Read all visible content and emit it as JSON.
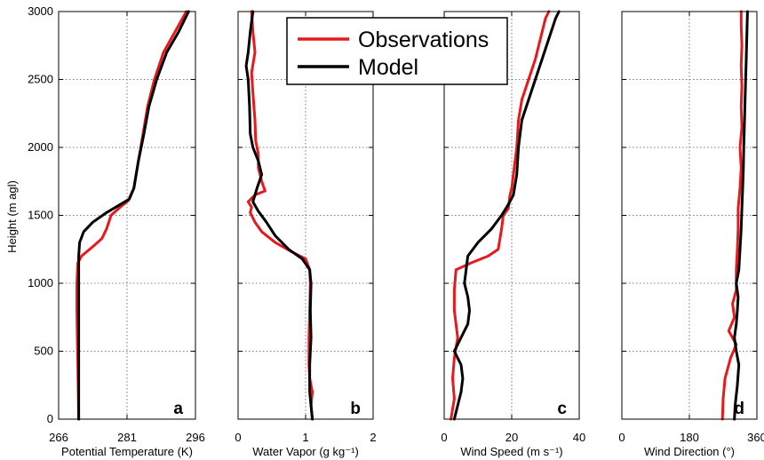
{
  "figure": {
    "ylabel": "Height (m agl)",
    "legend": {
      "placement": "top-center",
      "entries": [
        {
          "label": "Observations",
          "color": "#e8191c"
        },
        {
          "label": "Model",
          "color": "#000000"
        }
      ]
    }
  },
  "chart_data": [
    {
      "type": "line",
      "panel_label": "a",
      "xlabel": "Potential Temperature (K)",
      "ylabel": "Height (m agl)",
      "xlim": [
        266,
        296
      ],
      "ylim": [
        0,
        3000
      ],
      "xticks": [
        266,
        281,
        296
      ],
      "yticks": [
        0,
        500,
        1000,
        1500,
        2000,
        2500,
        3000
      ],
      "grid": true,
      "series": [
        {
          "name": "Observations",
          "color": "#e8191c",
          "points": [
            [
              270.4,
              0
            ],
            [
              270.3,
              200
            ],
            [
              270.2,
              400
            ],
            [
              270.1,
              600
            ],
            [
              270.0,
              800
            ],
            [
              270.0,
              1000
            ],
            [
              270.2,
              1150
            ],
            [
              271.0,
              1200
            ],
            [
              273.5,
              1270
            ],
            [
              275.5,
              1330
            ],
            [
              276.5,
              1400
            ],
            [
              277.5,
              1500
            ],
            [
              279.5,
              1560
            ],
            [
              281.3,
              1610
            ],
            [
              282.5,
              1700
            ],
            [
              283.5,
              1900
            ],
            [
              284.5,
              2100
            ],
            [
              285.5,
              2300
            ],
            [
              287.0,
              2500
            ],
            [
              289.0,
              2700
            ],
            [
              291.5,
              2850
            ],
            [
              294.0,
              3000
            ]
          ]
        },
        {
          "name": "Model",
          "color": "#000000",
          "points": [
            [
              270.4,
              0
            ],
            [
              270.4,
              300
            ],
            [
              270.4,
              600
            ],
            [
              270.4,
              900
            ],
            [
              270.4,
              1200
            ],
            [
              270.6,
              1300
            ],
            [
              271.5,
              1380
            ],
            [
              273.5,
              1450
            ],
            [
              276.5,
              1520
            ],
            [
              279.5,
              1580
            ],
            [
              281.5,
              1620
            ],
            [
              282.5,
              1700
            ],
            [
              283.5,
              1900
            ],
            [
              284.7,
              2100
            ],
            [
              285.8,
              2300
            ],
            [
              287.5,
              2500
            ],
            [
              289.7,
              2700
            ],
            [
              292.3,
              2850
            ],
            [
              294.5,
              3000
            ]
          ]
        }
      ]
    },
    {
      "type": "line",
      "panel_label": "b",
      "xlabel": "Water Vapor (g kg⁻¹)",
      "ylabel": "Height (m agl)",
      "xlim": [
        0,
        2
      ],
      "ylim": [
        0,
        3000
      ],
      "xticks": [
        0,
        1,
        2
      ],
      "yticks": [
        0,
        500,
        1000,
        1500,
        2000,
        2500,
        3000
      ],
      "grid": true,
      "series": [
        {
          "name": "Observations",
          "color": "#e8191c",
          "points": [
            [
              1.1,
              0
            ],
            [
              1.08,
              100
            ],
            [
              1.1,
              200
            ],
            [
              1.06,
              300
            ],
            [
              1.05,
              400
            ],
            [
              1.05,
              600
            ],
            [
              1.06,
              800
            ],
            [
              1.07,
              1000
            ],
            [
              1.06,
              1100
            ],
            [
              1.0,
              1180
            ],
            [
              0.8,
              1230
            ],
            [
              0.55,
              1300
            ],
            [
              0.35,
              1380
            ],
            [
              0.25,
              1450
            ],
            [
              0.18,
              1520
            ],
            [
              0.2,
              1560
            ],
            [
              0.15,
              1600
            ],
            [
              0.25,
              1650
            ],
            [
              0.4,
              1680
            ],
            [
              0.35,
              1750
            ],
            [
              0.3,
              1850
            ],
            [
              0.3,
              1950
            ],
            [
              0.26,
              2050
            ],
            [
              0.25,
              2200
            ],
            [
              0.22,
              2400
            ],
            [
              0.2,
              2550
            ],
            [
              0.25,
              2700
            ],
            [
              0.22,
              2850
            ],
            [
              0.2,
              3000
            ]
          ]
        },
        {
          "name": "Model",
          "color": "#000000",
          "points": [
            [
              1.1,
              0
            ],
            [
              1.06,
              200
            ],
            [
              1.06,
              400
            ],
            [
              1.08,
              600
            ],
            [
              1.07,
              800
            ],
            [
              1.08,
              1000
            ],
            [
              1.06,
              1100
            ],
            [
              0.95,
              1180
            ],
            [
              0.75,
              1250
            ],
            [
              0.55,
              1350
            ],
            [
              0.42,
              1450
            ],
            [
              0.3,
              1530
            ],
            [
              0.22,
              1600
            ],
            [
              0.28,
              1700
            ],
            [
              0.35,
              1800
            ],
            [
              0.3,
              1900
            ],
            [
              0.22,
              2000
            ],
            [
              0.18,
              2100
            ],
            [
              0.17,
              2300
            ],
            [
              0.15,
              2500
            ],
            [
              0.12,
              2600
            ],
            [
              0.15,
              2700
            ],
            [
              0.18,
              2850
            ],
            [
              0.22,
              3000
            ]
          ]
        }
      ]
    },
    {
      "type": "line",
      "panel_label": "c",
      "xlabel": "Wind Speed (m s⁻¹)",
      "ylabel": "Height (m agl)",
      "xlim": [
        0,
        40
      ],
      "ylim": [
        0,
        3000
      ],
      "xticks": [
        0,
        20,
        40
      ],
      "yticks": [
        0,
        500,
        1000,
        1500,
        2000,
        2500,
        3000
      ],
      "grid": true,
      "series": [
        {
          "name": "Observations",
          "color": "#e8191c",
          "points": [
            [
              2,
              0
            ],
            [
              3,
              150
            ],
            [
              2.5,
              300
            ],
            [
              3,
              450
            ],
            [
              4,
              600
            ],
            [
              3,
              800
            ],
            [
              3,
              950
            ],
            [
              3.5,
              1100
            ],
            [
              8,
              1150
            ],
            [
              13,
              1200
            ],
            [
              16,
              1250
            ],
            [
              17,
              1400
            ],
            [
              17.5,
              1500
            ],
            [
              19,
              1550
            ],
            [
              19.5,
              1650
            ],
            [
              20,
              1700
            ],
            [
              20.5,
              1800
            ],
            [
              21.5,
              2000
            ],
            [
              22,
              2200
            ],
            [
              23,
              2350
            ],
            [
              25,
              2500
            ],
            [
              27,
              2650
            ],
            [
              28,
              2750
            ],
            [
              29,
              2850
            ],
            [
              30,
              2950
            ],
            [
              31,
              3000
            ]
          ]
        },
        {
          "name": "Model",
          "color": "#000000",
          "points": [
            [
              3,
              0
            ],
            [
              4,
              100
            ],
            [
              5,
              200
            ],
            [
              5.5,
              300
            ],
            [
              5,
              400
            ],
            [
              3,
              500
            ],
            [
              5,
              600
            ],
            [
              7,
              700
            ],
            [
              7.5,
              800
            ],
            [
              7,
              900
            ],
            [
              6,
              1000
            ],
            [
              7,
              1200
            ],
            [
              10,
              1300
            ],
            [
              14,
              1400
            ],
            [
              17,
              1500
            ],
            [
              19,
              1580
            ],
            [
              20.5,
              1650
            ],
            [
              21.5,
              1800
            ],
            [
              22,
              2000
            ],
            [
              23,
              2200
            ],
            [
              25,
              2350
            ],
            [
              27,
              2500
            ],
            [
              29,
              2650
            ],
            [
              31,
              2800
            ],
            [
              33,
              2950
            ],
            [
              34,
              3000
            ]
          ]
        }
      ]
    },
    {
      "type": "line",
      "panel_label": "d",
      "xlabel": "Wind Direction (°)",
      "ylabel": "Height (m agl)",
      "xlim": [
        0,
        360
      ],
      "ylim": [
        0,
        3000
      ],
      "xticks": [
        0,
        180,
        360
      ],
      "yticks": [
        0,
        500,
        1000,
        1500,
        2000,
        2500,
        3000
      ],
      "grid": true,
      "series": [
        {
          "name": "Observations",
          "color": "#e8191c",
          "points": [
            [
              268,
              0
            ],
            [
              270,
              150
            ],
            [
              275,
              300
            ],
            [
              290,
              450
            ],
            [
              305,
              550
            ],
            [
              285,
              650
            ],
            [
              300,
              750
            ],
            [
              295,
              850
            ],
            [
              305,
              950
            ],
            [
              305,
              1100
            ],
            [
              308,
              1250
            ],
            [
              310,
              1400
            ],
            [
              310,
              1550
            ],
            [
              315,
              1700
            ],
            [
              318,
              1850
            ],
            [
              315,
              2000
            ],
            [
              320,
              2150
            ],
            [
              318,
              2300
            ],
            [
              320,
              2450
            ],
            [
              318,
              2600
            ],
            [
              320,
              2750
            ],
            [
              318,
              2900
            ],
            [
              318,
              3000
            ]
          ]
        },
        {
          "name": "Model",
          "color": "#000000",
          "points": [
            [
              300,
              0
            ],
            [
              302,
              100
            ],
            [
              308,
              250
            ],
            [
              312,
              400
            ],
            [
              305,
              500
            ],
            [
              300,
              600
            ],
            [
              305,
              700
            ],
            [
              308,
              800
            ],
            [
              310,
              900
            ],
            [
              305,
              1000
            ],
            [
              312,
              1100
            ],
            [
              315,
              1250
            ],
            [
              318,
              1400
            ],
            [
              320,
              1550
            ],
            [
              322,
              1700
            ],
            [
              324,
              1850
            ],
            [
              325,
              2000
            ],
            [
              327,
              2200
            ],
            [
              329,
              2400
            ],
            [
              331,
              2600
            ],
            [
              333,
              2800
            ],
            [
              335,
              3000
            ]
          ]
        }
      ]
    }
  ]
}
